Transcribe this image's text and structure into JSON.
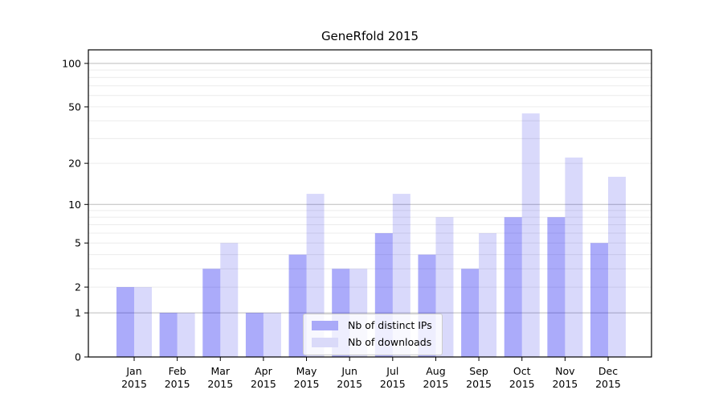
{
  "chart_data": {
    "type": "bar",
    "title": "GeneRfold 2015",
    "categories": [
      "Jan",
      "Feb",
      "Mar",
      "Apr",
      "May",
      "Jun",
      "Jul",
      "Aug",
      "Sep",
      "Oct",
      "Nov",
      "Dec"
    ],
    "category_year": "2015",
    "series": [
      {
        "name": "Nb of distinct IPs",
        "values": [
          2,
          1,
          3,
          1,
          4,
          3,
          6,
          4,
          3,
          8,
          8,
          5
        ],
        "bar_color": "rgba(0,0,240,0.33)",
        "legend_color": "#a9a9f8"
      },
      {
        "name": "Nb of downloads",
        "values": [
          2,
          1,
          5,
          1,
          12,
          3,
          12,
          8,
          6,
          45,
          22,
          16
        ],
        "bar_color": "rgba(0,0,230,0.15)",
        "legend_color": "#dadaf9"
      }
    ],
    "yscale": "log1p",
    "yticks": [
      0,
      1,
      2,
      5,
      10,
      20,
      50,
      100
    ],
    "ytick_labels": [
      "0",
      "1",
      "2",
      "5",
      "10",
      "20",
      "50",
      "100"
    ],
    "ylim": [
      0,
      124
    ],
    "xlabel": "",
    "ylabel": "",
    "grid": {
      "minor_color": "#ececec",
      "major_color": "#bdbdbd",
      "major_values": [
        1,
        10,
        100
      ]
    },
    "legend_position": "lower center",
    "axis_color": "#000000",
    "background": "#ffffff"
  }
}
